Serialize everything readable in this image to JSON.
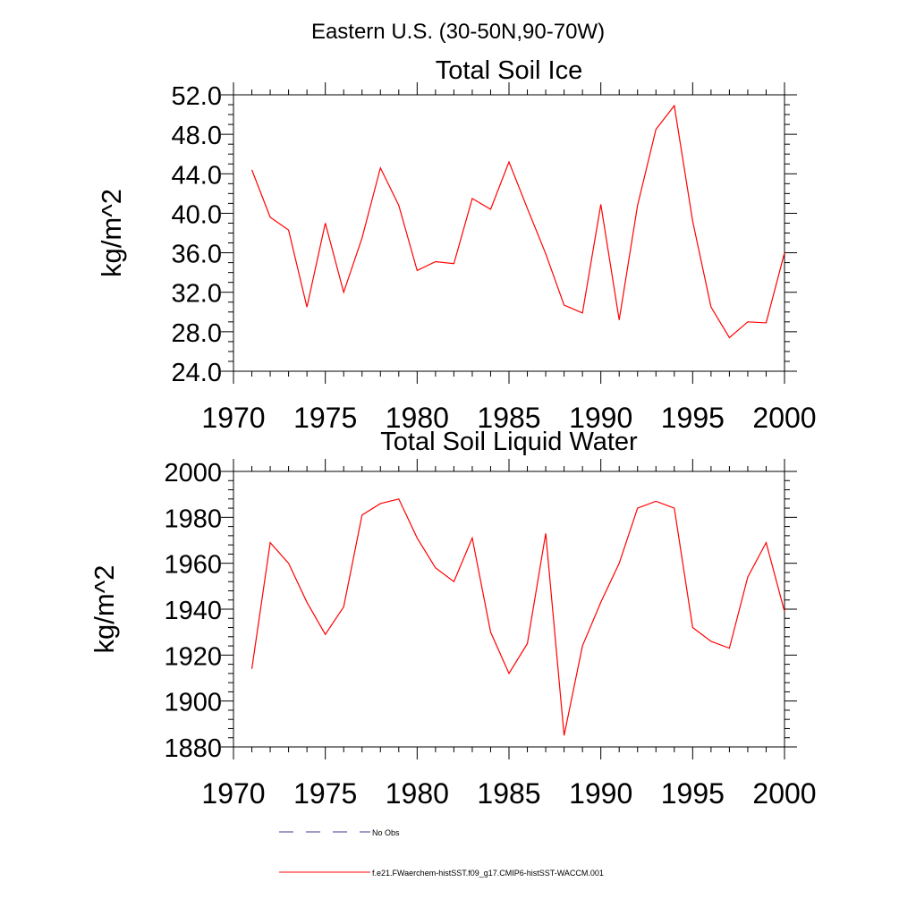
{
  "figure": {
    "title": "Eastern U.S. (30-50N,90-70W)"
  },
  "legend": [
    {
      "label": "No Obs",
      "color": "#3b3b8f",
      "style": "dashed"
    },
    {
      "label": "f.e21.FWaerchem-histSST.f09_g17.CMIP6-histSST-WACCM.001",
      "color": "#ff0000",
      "style": "solid"
    }
  ],
  "chart_data": [
    {
      "type": "line",
      "title": "Total Soil Ice",
      "xlabel": "",
      "ylabel": "kg/m^2",
      "xlim": [
        1970,
        2000
      ],
      "ylim": [
        24,
        52
      ],
      "x_ticks": [
        1970,
        1975,
        1980,
        1985,
        1990,
        1995,
        2000
      ],
      "x_tick_labels": [
        "1970",
        "1975",
        "1980",
        "1985",
        "1990",
        "1995",
        "2000"
      ],
      "y_ticks": [
        24,
        28,
        32,
        36,
        40,
        44,
        48,
        52
      ],
      "y_tick_labels": [
        "24.0",
        "28.0",
        "32.0",
        "36.0",
        "40.0",
        "44.0",
        "48.0",
        "52.0"
      ],
      "x_minor_step": 1,
      "y_minor_step": 1,
      "grid": false,
      "series": [
        {
          "name": "f.e21.FWaerchem-histSST.f09_g17.CMIP6-histSST-WACCM.001",
          "color": "#ff0000",
          "x": [
            1971,
            1972,
            1973,
            1974,
            1975,
            1976,
            1977,
            1978,
            1979,
            1980,
            1981,
            1982,
            1983,
            1984,
            1985,
            1986,
            1987,
            1988,
            1989,
            1990,
            1991,
            1992,
            1993,
            1994,
            1995,
            1996,
            1997,
            1998,
            1999,
            2000
          ],
          "y": [
            44.4,
            39.6,
            38.3,
            30.5,
            39.0,
            32.0,
            37.5,
            44.6,
            40.8,
            34.2,
            35.1,
            34.9,
            41.5,
            40.4,
            45.2,
            40.5,
            35.9,
            30.7,
            29.9,
            40.9,
            29.2,
            40.8,
            48.5,
            50.9,
            39.2,
            30.5,
            27.4,
            29.0,
            28.9,
            36.0
          ]
        }
      ]
    },
    {
      "type": "line",
      "title": "Total Soil Liquid Water",
      "xlabel": "",
      "ylabel": "kg/m^2",
      "xlim": [
        1970,
        2000
      ],
      "ylim": [
        1880,
        2000
      ],
      "x_ticks": [
        1970,
        1975,
        1980,
        1985,
        1990,
        1995,
        2000
      ],
      "x_tick_labels": [
        "1970",
        "1975",
        "1980",
        "1985",
        "1990",
        "1995",
        "2000"
      ],
      "y_ticks": [
        1880,
        1900,
        1920,
        1940,
        1960,
        1980,
        2000
      ],
      "y_tick_labels": [
        "1880",
        "1900",
        "1920",
        "1940",
        "1960",
        "1980",
        "2000"
      ],
      "x_minor_step": 1,
      "y_minor_step": 4,
      "grid": false,
      "series": [
        {
          "name": "f.e21.FWaerchem-histSST.f09_g17.CMIP6-histSST-WACCM.001",
          "color": "#ff0000",
          "x": [
            1971,
            1972,
            1973,
            1974,
            1975,
            1976,
            1977,
            1978,
            1979,
            1980,
            1981,
            1982,
            1983,
            1984,
            1985,
            1986,
            1987,
            1988,
            1989,
            1990,
            1991,
            1992,
            1993,
            1994,
            1995,
            1996,
            1997,
            1998,
            1999,
            2000
          ],
          "y": [
            1914,
            1969,
            1960,
            1943,
            1929,
            1941,
            1981,
            1986,
            1988,
            1971,
            1958,
            1952,
            1971,
            1930,
            1912,
            1925,
            1973,
            1885,
            1924,
            1943,
            1960,
            1984,
            1987,
            1984,
            1932,
            1926,
            1923,
            1954,
            1969,
            1939
          ]
        }
      ]
    }
  ]
}
